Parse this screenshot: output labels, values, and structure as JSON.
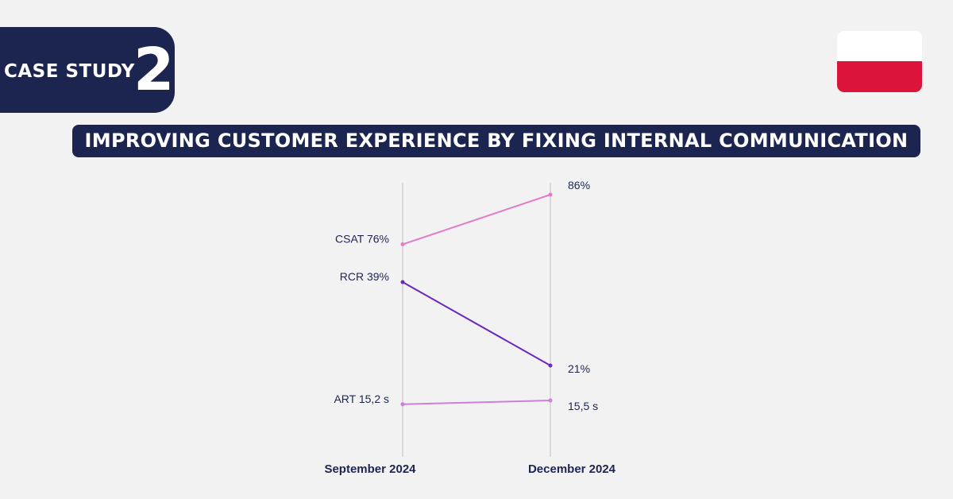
{
  "header": {
    "badge_label": "CASE STUDY",
    "badge_number": "2",
    "subtitle": "IMPROVING CUSTOMER EXPERIENCE BY FIXING INTERNAL COMMUNICATION"
  },
  "flag": {
    "top_color": "#ffffff",
    "bottom_color": "#dc143c"
  },
  "chart_data": {
    "type": "line",
    "categories": [
      "September 2024",
      "December 2024"
    ],
    "series": [
      {
        "name": "CSAT",
        "start_label": "CSAT 76%",
        "end_label": "86%",
        "values": [
          76,
          86
        ],
        "color": "#e57ac9"
      },
      {
        "name": "RCR",
        "start_label": "RCR 39%",
        "end_label": "21%",
        "values": [
          39,
          21
        ],
        "color": "#6b28be"
      },
      {
        "name": "ART",
        "start_label": "ART 15,2 s",
        "end_label": "15,5 s",
        "values": [
          15.2,
          15.5
        ],
        "color": "#cc7fdc"
      }
    ]
  }
}
